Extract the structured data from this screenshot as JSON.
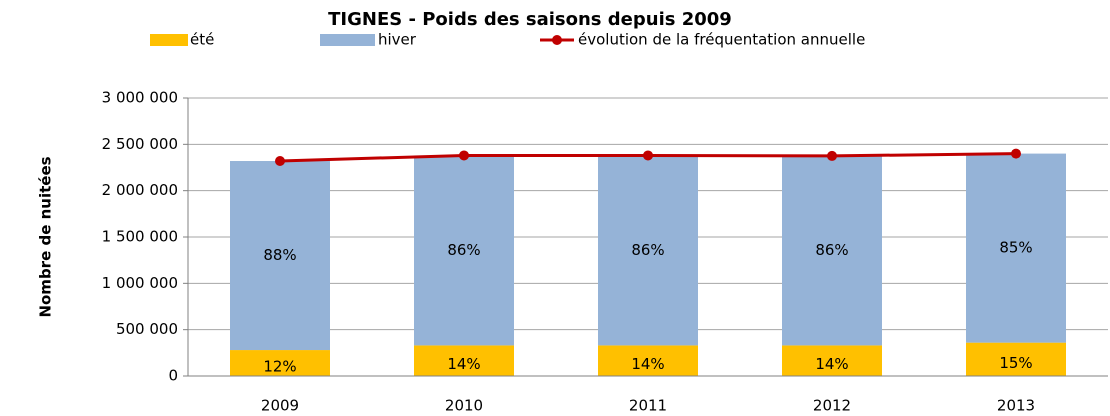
{
  "chart_data": {
    "type": "bar-line",
    "title": "TIGNES - Poids des saisons depuis 2009",
    "y_axis_label": "Nombre de nuitées",
    "categories": [
      "2009",
      "2010",
      "2011",
      "2012",
      "2013"
    ],
    "series": [
      {
        "name": "été",
        "color": "#FFC000",
        "values": [
          280000,
          330000,
          330000,
          330000,
          360000
        ],
        "value_labels": [
          "12%",
          "14%",
          "14%",
          "14%",
          "15%"
        ]
      },
      {
        "name": "hiver",
        "color": "#95B3D7",
        "values": [
          2040000,
          2050000,
          2050000,
          2045000,
          2040000
        ],
        "value_labels": [
          "88%",
          "86%",
          "86%",
          "86%",
          "85%"
        ]
      },
      {
        "name": "évolution de la fréquentation annuelle",
        "color": "#C00000",
        "type": "line",
        "values": [
          2320000,
          2380000,
          2380000,
          2375000,
          2400000
        ]
      }
    ],
    "ylim": [
      0,
      3000000
    ],
    "yticks": [
      0,
      {
        "value": 500000,
        "label": "500 000"
      },
      {
        "value": 1000000,
        "label": "1 000 000"
      },
      {
        "value": 1500000,
        "label": "1 500 000"
      },
      {
        "value": 2000000,
        "label": "2 000 000"
      },
      {
        "value": 2500000,
        "label": "2 500 000"
      },
      {
        "value": 3000000,
        "label": "3 000 000"
      }
    ],
    "grid": true
  }
}
